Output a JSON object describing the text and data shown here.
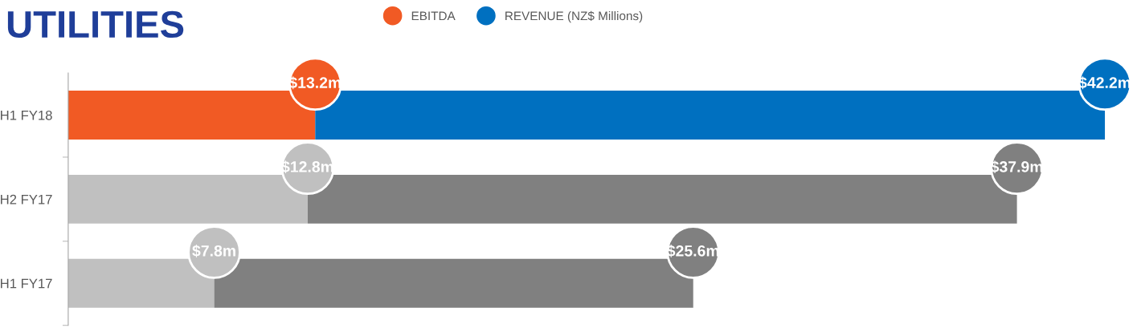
{
  "chart_data": {
    "type": "bar",
    "title": "UTILITIES",
    "orientation": "horizontal",
    "stacked": true,
    "categories": [
      "H1 FY18",
      "H2 FY17",
      "H1 FY17"
    ],
    "series": [
      {
        "name": "EBITDA",
        "color": "#f15a24",
        "colors": [
          "#f15a24",
          "#c0c0c0",
          "#c0c0c0"
        ],
        "values": [
          13.2,
          12.8,
          7.8
        ],
        "value_labels": [
          "$13.2m",
          "$12.8m",
          "$7.8m"
        ]
      },
      {
        "name": "REVENUE (NZ$ Millions)",
        "color": "#0070c0",
        "colors": [
          "#0070c0",
          "#808080",
          "#808080"
        ],
        "values": [
          42.2,
          37.9,
          25.6
        ],
        "value_labels": [
          "$42.2m",
          "$37.9m",
          "$25.6m"
        ]
      }
    ],
    "legend": "top",
    "grid": false,
    "tick_labels": "y"
  }
}
